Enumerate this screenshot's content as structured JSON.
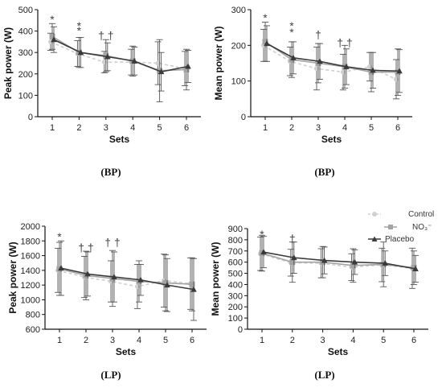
{
  "colors": {
    "control": "#cfcfcf",
    "nitrate": "#a3a3a3",
    "placebo": "#3a3a3a",
    "axis": "#111111",
    "errorbar": "#555555"
  },
  "legend": {
    "entries": [
      {
        "label": "Control",
        "series": "control",
        "marker": "circle"
      },
      {
        "label": "NO₃⁻",
        "series": "nitrate",
        "marker": "square"
      },
      {
        "label": "Placebo",
        "series": "placebo",
        "marker": "triangle"
      }
    ]
  },
  "chart_data": [
    {
      "type": "line",
      "caption": "(BP)",
      "xlabel": "Sets",
      "ylabel": "Peak power (W)",
      "categories": [
        "1",
        "2",
        "3",
        "4",
        "5",
        "6"
      ],
      "ylim": [
        0,
        500
      ],
      "yticks": [
        0,
        100,
        200,
        300,
        400,
        500
      ],
      "grid": false,
      "series": [
        {
          "id": "control",
          "values": [
            350,
            295,
            255,
            255,
            250,
            225
          ],
          "err": [
            40,
            60,
            50,
            60,
            100,
            80
          ]
        },
        {
          "id": "nitrate",
          "values": [
            375,
            300,
            285,
            260,
            215,
            220
          ],
          "err": [
            60,
            70,
            75,
            70,
            145,
            95
          ]
        },
        {
          "id": "placebo",
          "values": [
            360,
            300,
            280,
            260,
            210,
            235
          ],
          "err": [
            60,
            70,
            65,
            65,
            90,
            75
          ]
        }
      ],
      "annotations": [
        {
          "category": "1",
          "text": "*",
          "value": 455
        },
        {
          "category": "2",
          "text": "*",
          "value": 425
        },
        {
          "category": "2",
          "text": "*",
          "value": 402
        },
        {
          "category": "3",
          "text": "† †",
          "value": 380
        }
      ]
    },
    {
      "type": "line",
      "caption": "(BP)",
      "xlabel": "Sets",
      "ylabel": "Mean power (W)",
      "categories": [
        "1",
        "2",
        "3",
        "4",
        "5",
        "6"
      ],
      "ylim": [
        0,
        300
      ],
      "yticks": [
        0,
        100,
        200,
        300
      ],
      "grid": false,
      "series": [
        {
          "id": "control",
          "values": [
            200,
            155,
            135,
            125,
            140,
            105
          ],
          "err": [
            45,
            40,
            60,
            50,
            40,
            55
          ]
        },
        {
          "id": "nitrate",
          "values": [
            210,
            160,
            150,
            140,
            125,
            125
          ],
          "err": [
            55,
            50,
            55,
            60,
            55,
            65
          ]
        },
        {
          "id": "placebo",
          "values": [
            205,
            165,
            155,
            140,
            130,
            128
          ],
          "err": [
            50,
            45,
            50,
            50,
            50,
            60
          ]
        }
      ],
      "annotations": [
        {
          "category": "1",
          "text": "*",
          "value": 278
        },
        {
          "category": "2",
          "text": "*",
          "value": 255
        },
        {
          "category": "2",
          "text": "*",
          "value": 237
        },
        {
          "category": "3",
          "text": "†",
          "value": 230
        },
        {
          "category": "4",
          "text": "† †",
          "value": 208
        }
      ]
    },
    {
      "type": "line",
      "caption": "(LP)",
      "xlabel": "Sets",
      "ylabel": "Peak power (W)",
      "categories": [
        "1",
        "2",
        "3",
        "4",
        "5",
        "6"
      ],
      "ylim": [
        600,
        2000
      ],
      "yticks": [
        600,
        800,
        1000,
        1200,
        1400,
        1600,
        1800,
        2000
      ],
      "grid": false,
      "series": [
        {
          "id": "control",
          "values": [
            1400,
            1310,
            1250,
            1180,
            1260,
            1220
          ],
          "err": [
            300,
            280,
            280,
            300,
            360,
            350
          ]
        },
        {
          "id": "nitrate",
          "values": [
            1420,
            1330,
            1290,
            1250,
            1230,
            1210
          ],
          "err": [
            360,
            330,
            380,
            280,
            380,
            360
          ]
        },
        {
          "id": "placebo",
          "values": [
            1430,
            1350,
            1310,
            1270,
            1200,
            1140
          ],
          "err": [
            370,
            300,
            340,
            210,
            360,
            420
          ]
        }
      ],
      "annotations": [
        {
          "category": "1",
          "text": "*",
          "value": 1860
        },
        {
          "category": "2",
          "text": "† †",
          "value": 1710
        },
        {
          "category": "3",
          "text": "† †",
          "value": 1780
        }
      ]
    },
    {
      "type": "line",
      "caption": "(LP)",
      "xlabel": "Sets",
      "ylabel": "Mean power (W)",
      "categories": [
        "1",
        "2",
        "3",
        "4",
        "5",
        "6"
      ],
      "ylim": [
        0,
        900
      ],
      "yticks": [
        0,
        100,
        200,
        300,
        400,
        500,
        600,
        700,
        800,
        900
      ],
      "grid": false,
      "series": [
        {
          "id": "control",
          "values": [
            675,
            595,
            590,
            555,
            575,
            545
          ],
          "err": [
            150,
            120,
            130,
            120,
            150,
            180
          ]
        },
        {
          "id": "nitrate",
          "values": [
            680,
            600,
            600,
            570,
            580,
            550
          ],
          "err": [
            160,
            180,
            140,
            150,
            200,
            150
          ]
        },
        {
          "id": "placebo",
          "values": [
            690,
            640,
            615,
            600,
            590,
            540
          ],
          "err": [
            140,
            140,
            120,
            110,
            110,
            120
          ]
        }
      ],
      "annotations": [
        {
          "category": "1",
          "text": "*",
          "value": 850
        },
        {
          "category": "2",
          "text": "†",
          "value": 810
        }
      ]
    }
  ]
}
